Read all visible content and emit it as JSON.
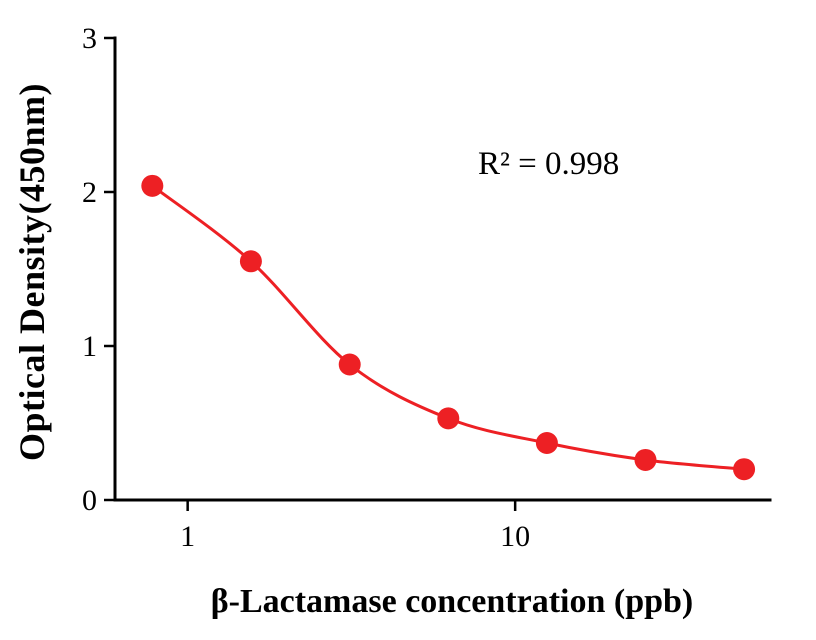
{
  "figure": {
    "background_color": "#ffffff",
    "axis_color": "#000000"
  },
  "chart_data": {
    "type": "scatter",
    "title": "",
    "xlabel": "β-Lactamase concentration (ppb)",
    "ylabel": "Optical Density(450nm)",
    "annotation": "R² = 0.998",
    "x_scale": "log",
    "y_scale": "linear",
    "x": [
      0.78,
      1.56,
      3.125,
      6.25,
      12.5,
      25,
      50
    ],
    "y": [
      2.04,
      1.55,
      0.88,
      0.53,
      0.37,
      0.26,
      0.2
    ],
    "fit": "4PL sigmoidal standard curve through points",
    "xlim": [
      0.6,
      60
    ],
    "ylim": [
      0,
      3
    ],
    "x_ticks": [
      1,
      10
    ],
    "x_tick_labels": [
      "1",
      "10"
    ],
    "y_ticks": [
      0,
      1,
      2,
      3
    ],
    "y_tick_labels": [
      "0",
      "1",
      "2",
      "3"
    ],
    "grid": false,
    "legend": "none",
    "point_color": "#ed2024",
    "line_color": "#ed2024",
    "point_radius": 11,
    "line_width": 3
  }
}
